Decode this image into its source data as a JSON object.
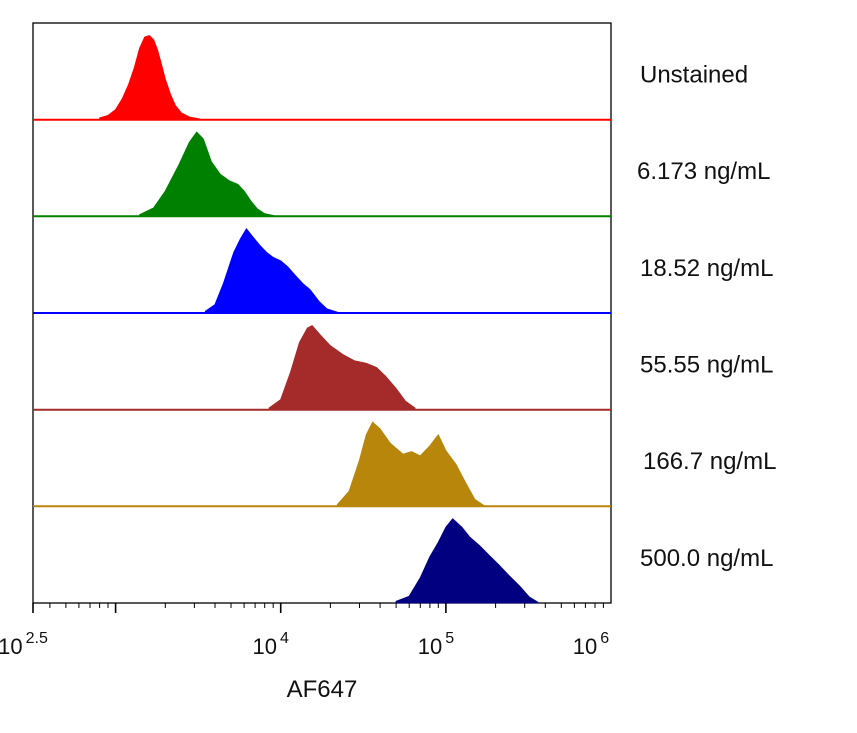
{
  "chart_data": {
    "type": "area",
    "subtype": "stacked histogram overlay (flow cytometry)",
    "title": "",
    "xlabel": "AF647",
    "ylabel": "",
    "x_scale": "log10",
    "xlim": [
      316.2,
      1000000
    ],
    "ylim": [
      0,
      1
    ],
    "grid": false,
    "legend": "row labels at right of each histogram",
    "x_ticks": [
      {
        "value": 316.2,
        "base": "10",
        "exp": "2.5"
      },
      {
        "value": 10000,
        "base": "10",
        "exp": "4"
      },
      {
        "value": 100000,
        "base": "10",
        "exp": "5"
      },
      {
        "value": 1000000,
        "base": "10",
        "exp": "6"
      }
    ],
    "series": [
      {
        "name": "Unstained",
        "color": "#ff0000",
        "x": [
          800,
          900,
          1000,
          1100,
          1200,
          1300,
          1400,
          1500,
          1600,
          1700,
          1800,
          1900,
          2000,
          2150,
          2300,
          2500,
          2800,
          3200
        ],
        "y": [
          0.02,
          0.05,
          0.12,
          0.25,
          0.42,
          0.62,
          0.85,
          0.98,
          1.0,
          0.95,
          0.82,
          0.65,
          0.48,
          0.3,
          0.17,
          0.08,
          0.03,
          0.01
        ]
      },
      {
        "name": "6.173 ng/mL",
        "color": "#008000",
        "x": [
          1400,
          1700,
          2000,
          2400,
          2800,
          3100,
          3400,
          3800,
          4300,
          4900,
          5500,
          6000,
          6600,
          7200,
          8000,
          9000
        ],
        "y": [
          0.02,
          0.1,
          0.3,
          0.6,
          0.88,
          1.0,
          0.92,
          0.65,
          0.5,
          0.42,
          0.38,
          0.3,
          0.18,
          0.09,
          0.03,
          0.01
        ]
      },
      {
        "name": "18.52 ng/mL",
        "color": "#0000ff",
        "x": [
          3500,
          4000,
          4500,
          5200,
          5700,
          6200,
          6800,
          7500,
          8200,
          9000,
          10000,
          11000,
          12200,
          13600,
          15000,
          17000,
          19000,
          22000
        ],
        "y": [
          0.02,
          0.1,
          0.35,
          0.72,
          0.88,
          1.0,
          0.9,
          0.8,
          0.72,
          0.66,
          0.62,
          0.55,
          0.45,
          0.35,
          0.28,
          0.14,
          0.05,
          0.01
        ]
      },
      {
        "name": "55.55 ng/mL",
        "color": "#a52a2a",
        "x": [
          8500,
          10000,
          11500,
          13000,
          14500,
          15500,
          17500,
          20000,
          24000,
          28000,
          33000,
          38000,
          43000,
          50000,
          57000,
          65000
        ],
        "y": [
          0.02,
          0.12,
          0.45,
          0.8,
          0.97,
          1.0,
          0.88,
          0.76,
          0.65,
          0.58,
          0.55,
          0.5,
          0.4,
          0.25,
          0.1,
          0.02
        ]
      },
      {
        "name": "166.7 ng/mL",
        "color": "#b8860b",
        "x": [
          22000,
          26000,
          30000,
          33000,
          36000,
          40000,
          46000,
          55000,
          62000,
          70000,
          80000,
          90000,
          100000,
          115000,
          130000,
          150000,
          170000
        ],
        "y": [
          0.02,
          0.18,
          0.55,
          0.85,
          1.0,
          0.92,
          0.75,
          0.62,
          0.65,
          0.6,
          0.72,
          0.85,
          0.66,
          0.5,
          0.3,
          0.08,
          0.01
        ]
      },
      {
        "name": "500.0 ng/mL",
        "color": "#000080",
        "x": [
          50000,
          60000,
          70000,
          80000,
          90000,
          100000,
          110000,
          125000,
          140000,
          160000,
          180000,
          210000,
          240000,
          280000,
          320000,
          360000
        ],
        "y": [
          0.02,
          0.08,
          0.3,
          0.55,
          0.72,
          0.9,
          1.0,
          0.9,
          0.78,
          0.68,
          0.58,
          0.45,
          0.33,
          0.2,
          0.07,
          0.01
        ]
      }
    ]
  }
}
